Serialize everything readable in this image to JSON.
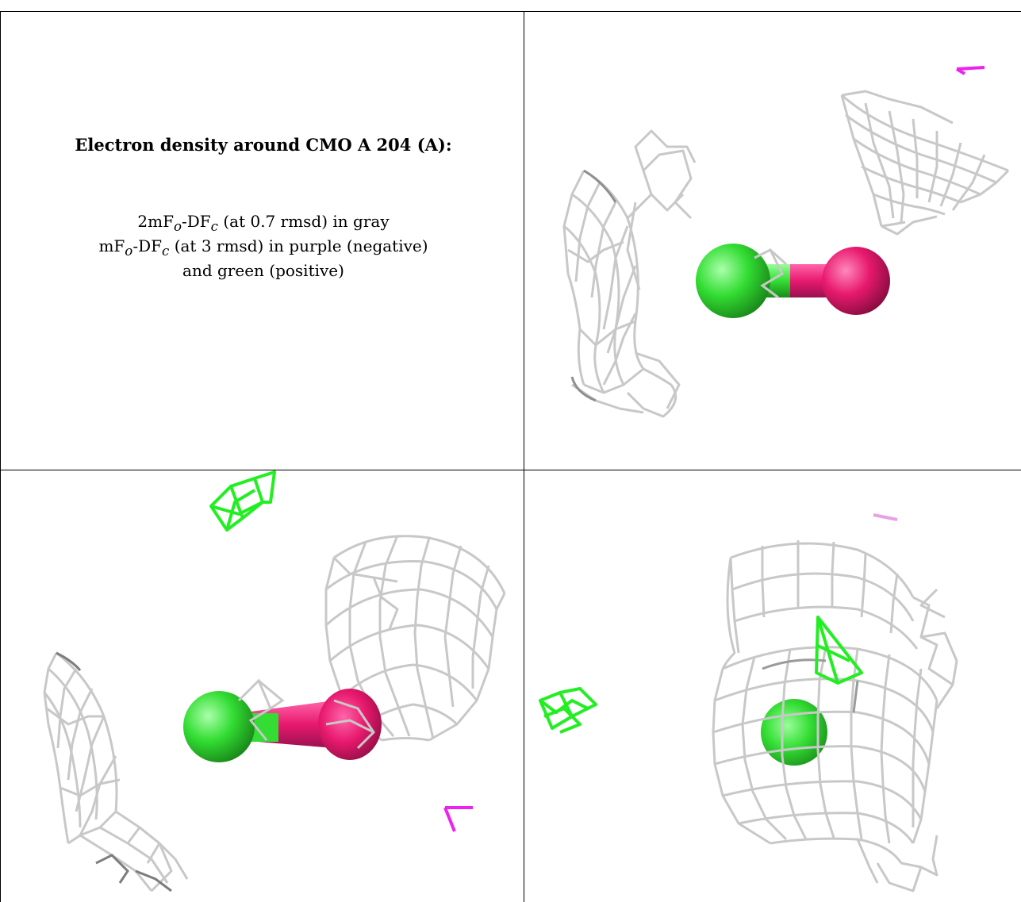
{
  "caption": {
    "title": "Electron density around CMO A 204 (A):",
    "map1_prefix": "2mF",
    "map1_sub_o": "o",
    "map1_mid": "-DF",
    "map1_sub_c": "c",
    "map1_suffix": " (at 0.7 rmsd) in gray",
    "map2_prefix": "mF",
    "map2_sub_o": "o",
    "map2_mid": "-DF",
    "map2_sub_c": "c",
    "map2_suffix": " (at 3 rmsd) in purple (negative)",
    "map2_line2": "and green (positive)"
  },
  "colors": {
    "mesh_gray": "#c8c8c8",
    "mesh_dark": "#9a9a9a",
    "positive_green": "#22ee22",
    "negative_purple": "#ee22ee",
    "carbon_green": "#33dd33",
    "oxygen_pink": "#e8196e"
  },
  "panels": [
    {
      "name": "view-1",
      "content": "CMO ligand with gray 2mFo-DFc mesh and small purple difference density"
    },
    {
      "name": "view-2",
      "content": "CMO ligand side view with gray mesh and green positive difference density"
    },
    {
      "name": "view-3",
      "content": "CMO ligand end-on view enclosed by gray mesh with green positive density"
    }
  ]
}
